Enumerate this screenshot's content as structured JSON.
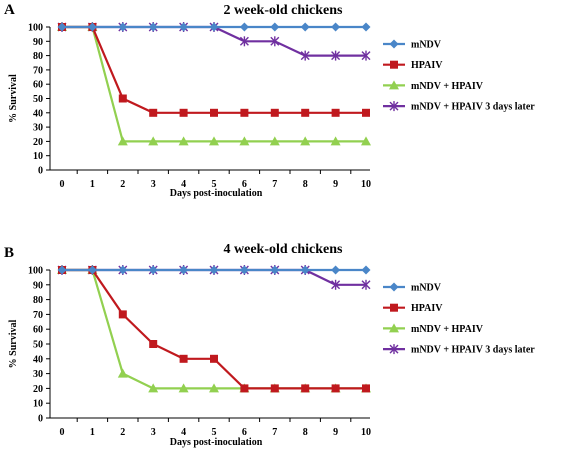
{
  "colors": {
    "mNDV": "#4a86c8",
    "HPAIV": "#c0191e",
    "mNDV + HPAIV": "#92d050",
    "mNDV + HPAIV 3 days later": "#7030a0"
  },
  "chart_data": [
    {
      "type": "line",
      "panel": "A",
      "title": "2 week-old chickens",
      "xlabel": "Days post-inoculation",
      "ylabel": "% Survival",
      "x": [
        0,
        1,
        2,
        3,
        4,
        5,
        6,
        7,
        8,
        9,
        10
      ],
      "xlim": [
        0,
        10
      ],
      "ylim": [
        0,
        100
      ],
      "yticks": [
        0,
        10,
        20,
        30,
        40,
        50,
        60,
        70,
        80,
        90,
        100
      ],
      "legend": "right",
      "grid": false,
      "series": [
        {
          "name": "mNDV",
          "marker": "diamond",
          "values": [
            100,
            100,
            100,
            100,
            100,
            100,
            100,
            100,
            100,
            100,
            100
          ]
        },
        {
          "name": "HPAIV",
          "marker": "square",
          "values": [
            100,
            100,
            50,
            40,
            40,
            40,
            40,
            40,
            40,
            40,
            40
          ]
        },
        {
          "name": "mNDV + HPAIV",
          "marker": "triangle",
          "values": [
            100,
            100,
            20,
            20,
            20,
            20,
            20,
            20,
            20,
            20,
            20
          ]
        },
        {
          "name": "mNDV + HPAIV 3 days later",
          "marker": "star",
          "values": [
            100,
            100,
            100,
            100,
            100,
            100,
            90,
            90,
            80,
            80,
            80
          ]
        }
      ]
    },
    {
      "type": "line",
      "panel": "B",
      "title": "4 week-old chickens",
      "xlabel": "Days post-inoculation",
      "ylabel": "% Survival",
      "x": [
        0,
        1,
        2,
        3,
        4,
        5,
        6,
        7,
        8,
        9,
        10
      ],
      "xlim": [
        0,
        10
      ],
      "ylim": [
        0,
        100
      ],
      "yticks": [
        0,
        10,
        20,
        30,
        40,
        50,
        60,
        70,
        80,
        90,
        100
      ],
      "legend": "right",
      "grid": false,
      "series": [
        {
          "name": "mNDV",
          "marker": "diamond",
          "values": [
            100,
            100,
            100,
            100,
            100,
            100,
            100,
            100,
            100,
            100,
            100
          ]
        },
        {
          "name": "HPAIV",
          "marker": "square",
          "values": [
            100,
            100,
            70,
            50,
            40,
            40,
            20,
            20,
            20,
            20,
            20
          ]
        },
        {
          "name": "mNDV + HPAIV",
          "marker": "triangle",
          "values": [
            100,
            100,
            30,
            20,
            20,
            20,
            20,
            20,
            20,
            20,
            20
          ]
        },
        {
          "name": "mNDV + HPAIV 3 days later",
          "marker": "star",
          "values": [
            100,
            100,
            100,
            100,
            100,
            100,
            100,
            100,
            100,
            90,
            90
          ]
        }
      ]
    }
  ]
}
